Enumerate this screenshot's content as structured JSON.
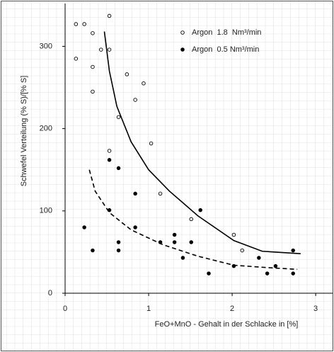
{
  "chart_data": {
    "type": "scatter",
    "x_label": "FeO+MnO - Gehalt in der Schlacke in [%]",
    "y_label": "Schwefel Verteilung (% S)/[% S]",
    "xlim": [
      0,
      3.05
    ],
    "ylim": [
      0,
      352
    ],
    "xticks": [
      0,
      1,
      2,
      3
    ],
    "yticks": [
      0,
      100,
      200,
      300
    ],
    "grid": true,
    "series": [
      {
        "name": "Argon  1.8  Nm³/min",
        "marker": "open",
        "color": "#000000",
        "x": [
          0.13,
          0.23,
          0.53,
          0.33,
          0.13,
          0.43,
          0.53,
          0.33,
          0.33,
          0.74,
          0.94,
          0.84,
          0.64,
          1.03,
          0.53,
          1.14,
          1.51,
          2.02,
          2.12
        ],
        "values": [
          327,
          327,
          337,
          316,
          285,
          296,
          296,
          275,
          245,
          266,
          255,
          235,
          214,
          182,
          173,
          121,
          90,
          71,
          52
        ]
      },
      {
        "name": "Argon  0.5 Nm³/min",
        "marker": "filled",
        "color": "#000000",
        "x": [
          0.53,
          0.64,
          0.84,
          0.23,
          0.53,
          0.84,
          0.64,
          0.33,
          0.64,
          1.14,
          1.31,
          1.31,
          1.41,
          1.51,
          1.62,
          1.72,
          2.02,
          2.32,
          2.42,
          2.52,
          2.73,
          2.73
        ],
        "values": [
          162,
          152,
          121,
          80,
          101,
          80,
          62,
          52,
          52,
          62,
          71,
          62,
          43,
          62,
          101,
          24,
          33,
          43,
          24,
          33,
          52,
          24
        ]
      }
    ],
    "curves": [
      {
        "style": "solid",
        "color": "#000000",
        "x": [
          0.47,
          0.53,
          0.62,
          0.79,
          1.0,
          1.25,
          1.59,
          2.02,
          2.36,
          2.82
        ],
        "values": [
          318,
          270,
          227,
          184,
          150,
          124,
          94,
          64,
          51,
          48
        ]
      },
      {
        "style": "dashed",
        "color": "#000000",
        "x": [
          0.29,
          0.36,
          0.53,
          0.79,
          1.17,
          1.59,
          2.02,
          2.44,
          2.78
        ],
        "values": [
          150,
          124,
          98,
          77,
          59,
          45,
          34,
          31,
          29
        ]
      }
    ]
  }
}
